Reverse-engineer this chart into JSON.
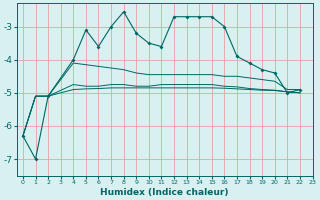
{
  "title": "",
  "xlabel": "Humidex (Indice chaleur)",
  "bg_color": "#d8f0f0",
  "grid_color": "#e8a0a0",
  "line_color": "#006666",
  "xlim": [
    -0.5,
    23
  ],
  "ylim": [
    -7.5,
    -2.3
  ],
  "yticks": [
    -7,
    -6,
    -5,
    -4,
    -3
  ],
  "xticks": [
    0,
    1,
    2,
    3,
    4,
    5,
    6,
    7,
    8,
    9,
    10,
    11,
    12,
    13,
    14,
    15,
    16,
    17,
    18,
    19,
    20,
    21,
    22,
    23
  ],
  "line1_x": [
    0,
    1,
    2,
    4,
    5,
    6,
    7,
    8,
    9,
    10,
    11,
    12,
    13,
    14,
    15,
    16,
    17,
    18,
    19,
    20,
    21,
    22
  ],
  "line1_y": [
    -6.3,
    -7.0,
    -5.1,
    -4.0,
    -3.1,
    -3.6,
    -3.0,
    -2.55,
    -3.2,
    -3.5,
    -3.6,
    -2.7,
    -2.7,
    -2.7,
    -2.7,
    -3.0,
    -3.9,
    -4.1,
    -4.3,
    -4.4,
    -5.0,
    -4.9
  ],
  "line2_x": [
    0,
    1,
    2,
    4,
    5,
    6,
    7,
    8,
    9,
    10,
    11,
    12,
    13,
    14,
    15,
    16,
    17,
    18,
    19,
    20,
    21,
    22
  ],
  "line2_y": [
    -6.3,
    -5.1,
    -5.1,
    -4.1,
    -4.15,
    -4.2,
    -4.25,
    -4.3,
    -4.4,
    -4.45,
    -4.45,
    -4.45,
    -4.45,
    -4.45,
    -4.45,
    -4.5,
    -4.5,
    -4.55,
    -4.6,
    -4.65,
    -4.9,
    -4.9
  ],
  "line3_x": [
    0,
    1,
    2,
    4,
    5,
    6,
    7,
    8,
    9,
    10,
    11,
    12,
    13,
    14,
    15,
    16,
    17,
    18,
    19,
    20,
    21,
    22
  ],
  "line3_y": [
    -6.3,
    -5.1,
    -5.1,
    -4.75,
    -4.8,
    -4.8,
    -4.75,
    -4.75,
    -4.8,
    -4.8,
    -4.75,
    -4.75,
    -4.75,
    -4.75,
    -4.75,
    -4.8,
    -4.82,
    -4.87,
    -4.9,
    -4.92,
    -4.97,
    -5.0
  ],
  "line4_x": [
    0,
    1,
    2,
    4,
    5,
    6,
    7,
    8,
    9,
    10,
    11,
    12,
    13,
    14,
    15,
    16,
    17,
    18,
    19,
    20,
    21,
    22
  ],
  "line4_y": [
    -6.3,
    -5.1,
    -5.1,
    -4.9,
    -4.88,
    -4.87,
    -4.85,
    -4.85,
    -4.85,
    -4.85,
    -4.85,
    -4.85,
    -4.85,
    -4.85,
    -4.85,
    -4.86,
    -4.88,
    -4.9,
    -4.92,
    -4.93,
    -4.97,
    -5.0
  ]
}
